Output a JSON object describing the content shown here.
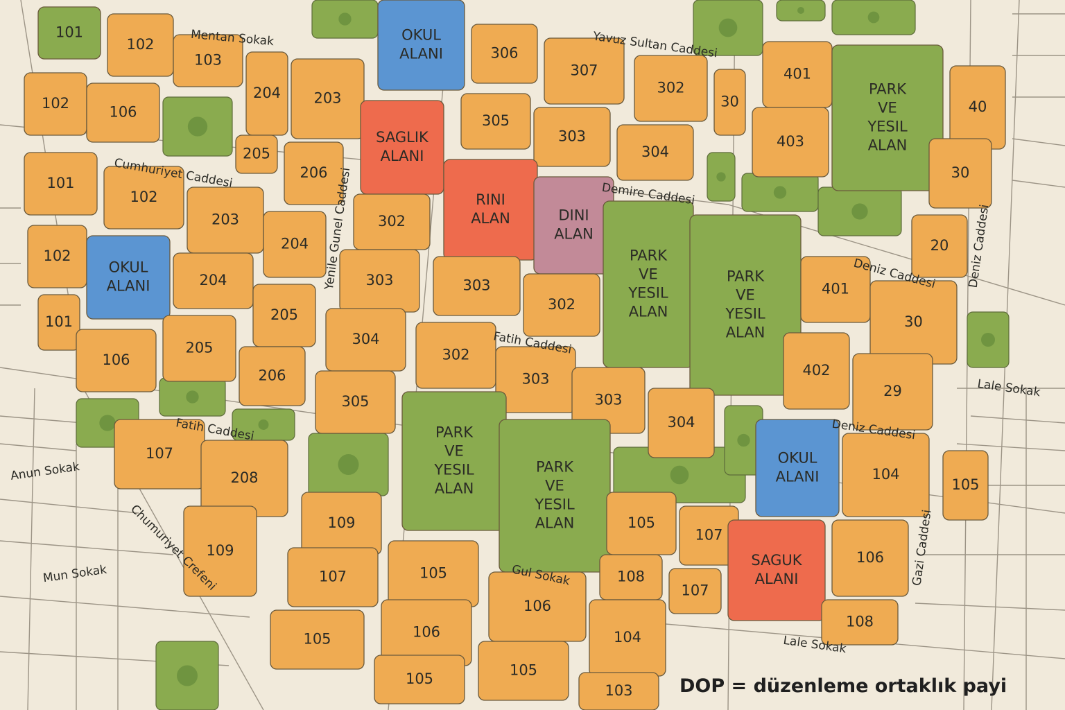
{
  "parcels": [
    [
      "101"
    ],
    [
      "102"
    ],
    [
      "103"
    ],
    [
      "204"
    ],
    [
      "203"
    ],
    [
      "102"
    ],
    [
      "106"
    ],
    [
      "205"
    ],
    [
      "206"
    ],
    [
      "OKUL",
      "ALANI"
    ],
    [
      "SAGLIK",
      "ALANI"
    ],
    [
      "306"
    ],
    [
      "307"
    ],
    [
      "302"
    ],
    [
      "30"
    ],
    [
      "305"
    ],
    [
      "303"
    ],
    [
      "304"
    ],
    [
      "401"
    ],
    [
      "403"
    ],
    [
      "PARK",
      "VE",
      "YESIL",
      "ALAN"
    ],
    [
      "40"
    ],
    [
      "30"
    ],
    [
      "20"
    ],
    [
      "101"
    ],
    [
      "102"
    ],
    [
      "203"
    ],
    [
      "102"
    ],
    [
      "OKUL",
      "ALANI"
    ],
    [
      "204"
    ],
    [
      "204"
    ],
    [
      "302"
    ],
    [
      "RINI",
      "ALAN"
    ],
    [
      "DINI",
      "ALAN"
    ],
    [
      "303"
    ],
    [
      "303"
    ],
    [
      "302"
    ],
    [
      "PARK",
      "VE",
      "YESIL",
      "ALAN"
    ],
    [
      "PARK",
      "VE",
      "YESIL",
      "ALAN"
    ],
    [
      "401"
    ],
    [
      "30"
    ],
    [
      "101"
    ],
    [
      "106"
    ],
    [
      "205"
    ],
    [
      "205"
    ],
    [
      "206"
    ],
    [
      "304"
    ],
    [
      "302"
    ],
    [
      "303"
    ],
    [
      "305"
    ],
    [
      "303"
    ],
    [
      "304"
    ],
    [
      "402"
    ],
    [
      "29"
    ],
    [
      "107"
    ],
    [
      "208"
    ],
    [
      "109"
    ],
    [
      "109"
    ],
    [
      "PARK",
      "VE",
      "YESIL",
      "ALAN"
    ],
    [
      "PARK",
      "VE",
      "YESIL",
      "ALAN"
    ],
    [
      "OKUL",
      "ALANI"
    ],
    [
      "104"
    ],
    [
      "105"
    ],
    [
      "107"
    ],
    [
      "105"
    ],
    [
      "105"
    ],
    [
      "107"
    ],
    [
      "108"
    ],
    [
      "107"
    ],
    [
      "SAGUK",
      "ALANI"
    ],
    [
      "106"
    ],
    [
      "108"
    ],
    [
      "106"
    ],
    [
      "106"
    ],
    [
      "104"
    ],
    [
      "105"
    ],
    [
      "105"
    ],
    [
      "105"
    ],
    [
      "103"
    ]
  ],
  "streets": [
    "Mentan Sokak",
    "Yavuz Sultan Caddesi",
    "Cumhuriyet Caddesi",
    "Demire Caddesi",
    "Deniz Caddesi",
    "Fatih Caddesi",
    "Fatih Caddesi",
    "Lale Sokak",
    "Deniz Caddesi",
    "Gul Sokak",
    "Lale Sokak",
    "Anun Sokak",
    "Mun Sokak",
    "Chumuriyet Crefeni",
    "Yenile Gunel Caddesi",
    "Deniz Caddesi",
    "Gazi Caddesi"
  ],
  "legend": "DOP = düzenleme ortaklık payi"
}
